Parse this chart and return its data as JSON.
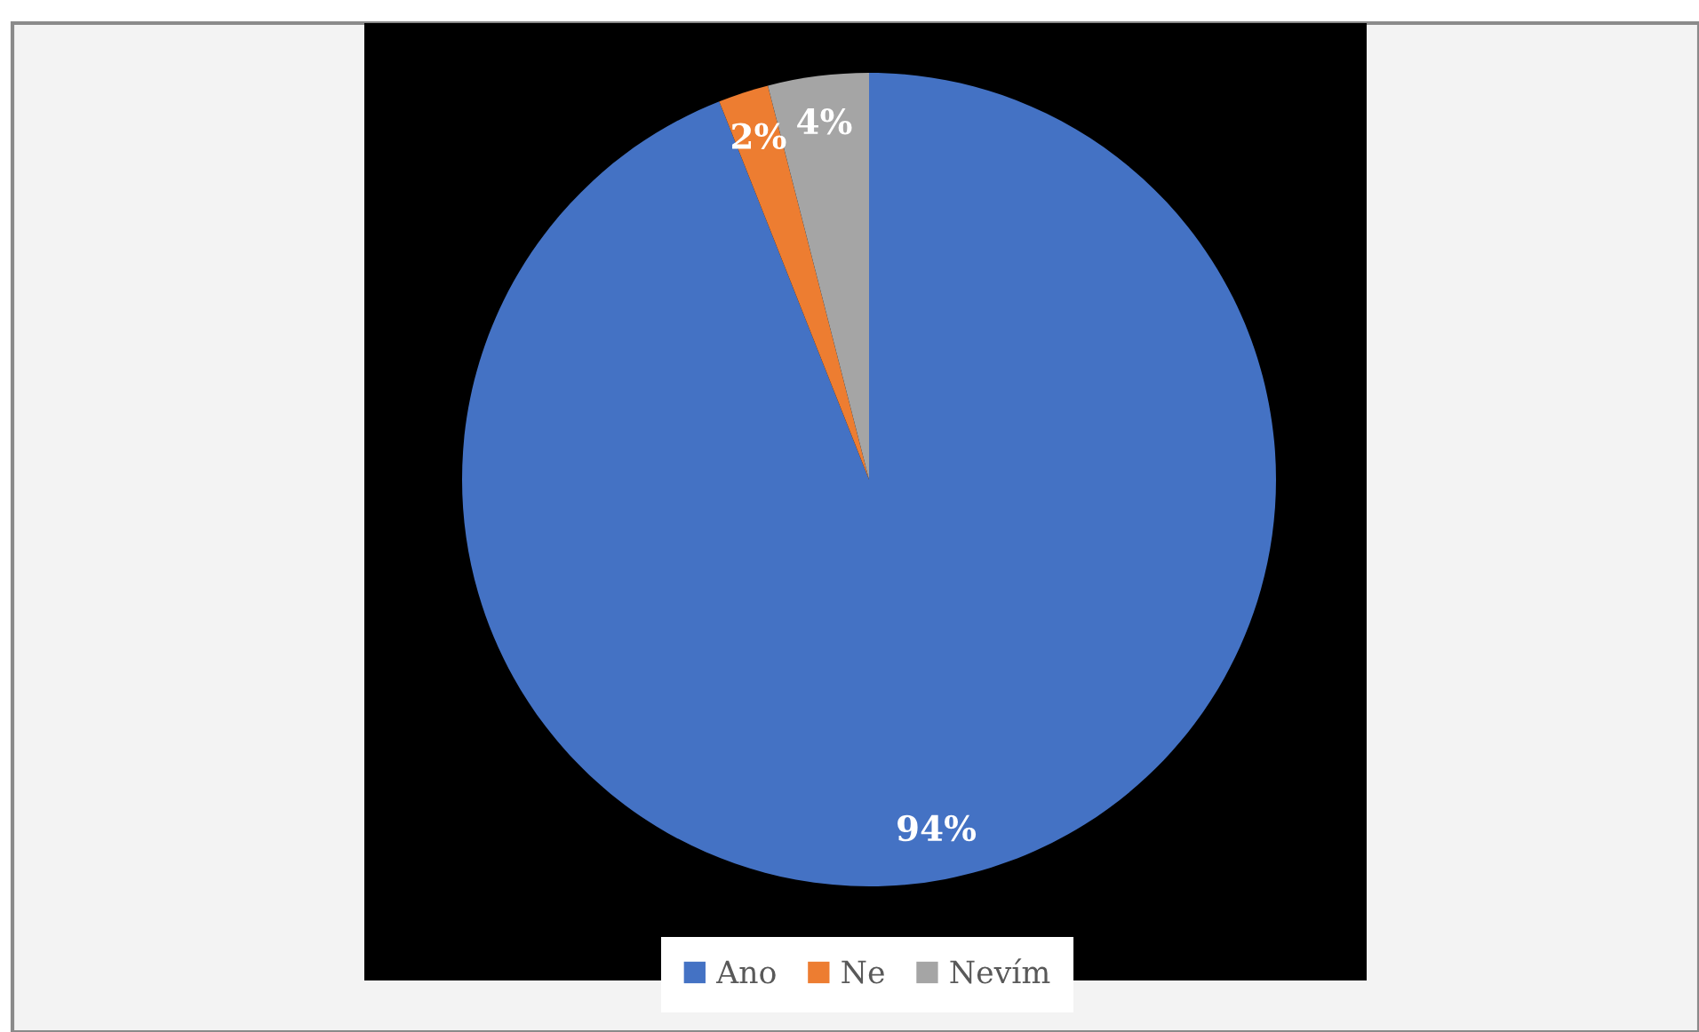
{
  "chart_data": {
    "type": "pie",
    "categories": [
      "Ano",
      "Ne",
      "Nevím"
    ],
    "values": [
      94,
      2,
      4
    ],
    "colors": [
      "#4472c4",
      "#ed7d31",
      "#a5a5a5"
    ],
    "value_labels": [
      "94%",
      "2%",
      "4%"
    ],
    "legend": "bottom"
  }
}
